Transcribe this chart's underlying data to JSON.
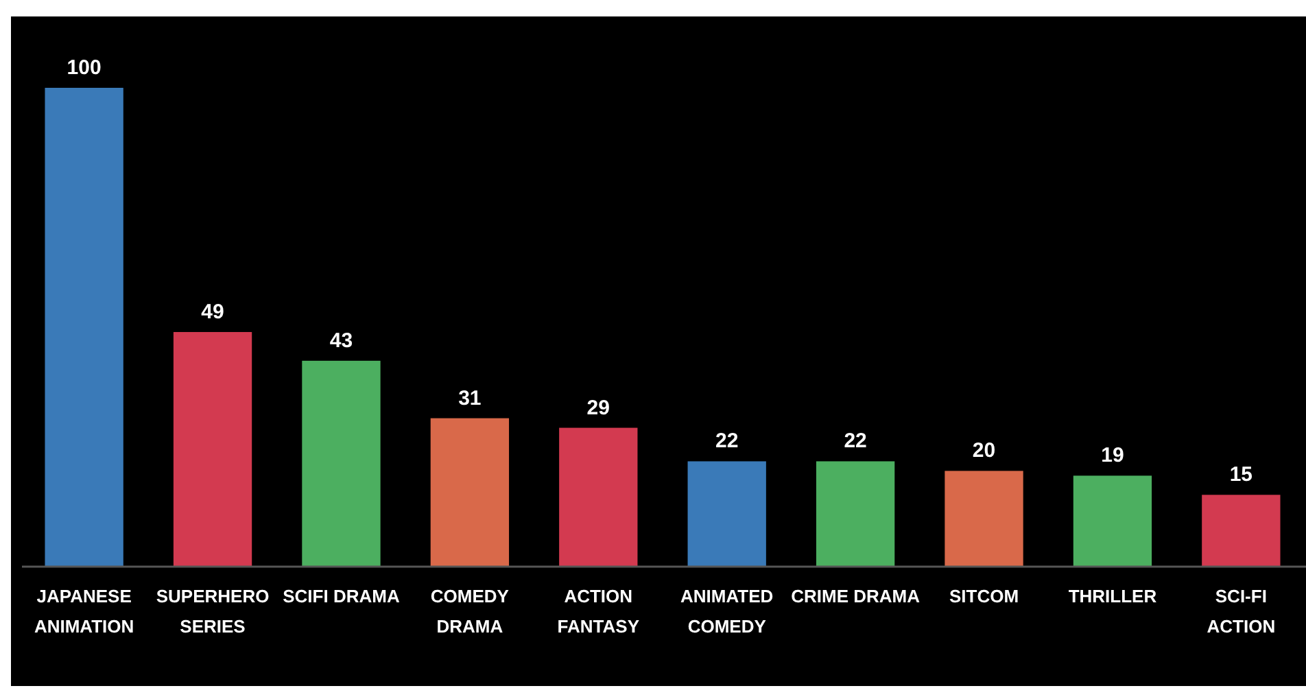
{
  "chart_data": {
    "type": "bar",
    "categories": [
      "JAPANESE ANIMATION",
      "SUPERHERO SERIES",
      "SCIFI DRAMA",
      "COMEDY DRAMA",
      "ACTION FANTASY",
      "ANIMATED COMEDY",
      "CRIME DRAMA",
      "SITCOM",
      "THRILLER",
      "SCI-FI ACTION"
    ],
    "values": [
      100,
      49,
      43,
      31,
      29,
      22,
      22,
      20,
      19,
      15
    ],
    "colors": [
      "#3a7ab8",
      "#d33a50",
      "#4caf60",
      "#d9694a",
      "#d33a50",
      "#3a7ab8",
      "#4caf60",
      "#d9694a",
      "#4caf60",
      "#d33a50"
    ],
    "ylim": [
      0,
      100
    ],
    "data_labels": true
  }
}
